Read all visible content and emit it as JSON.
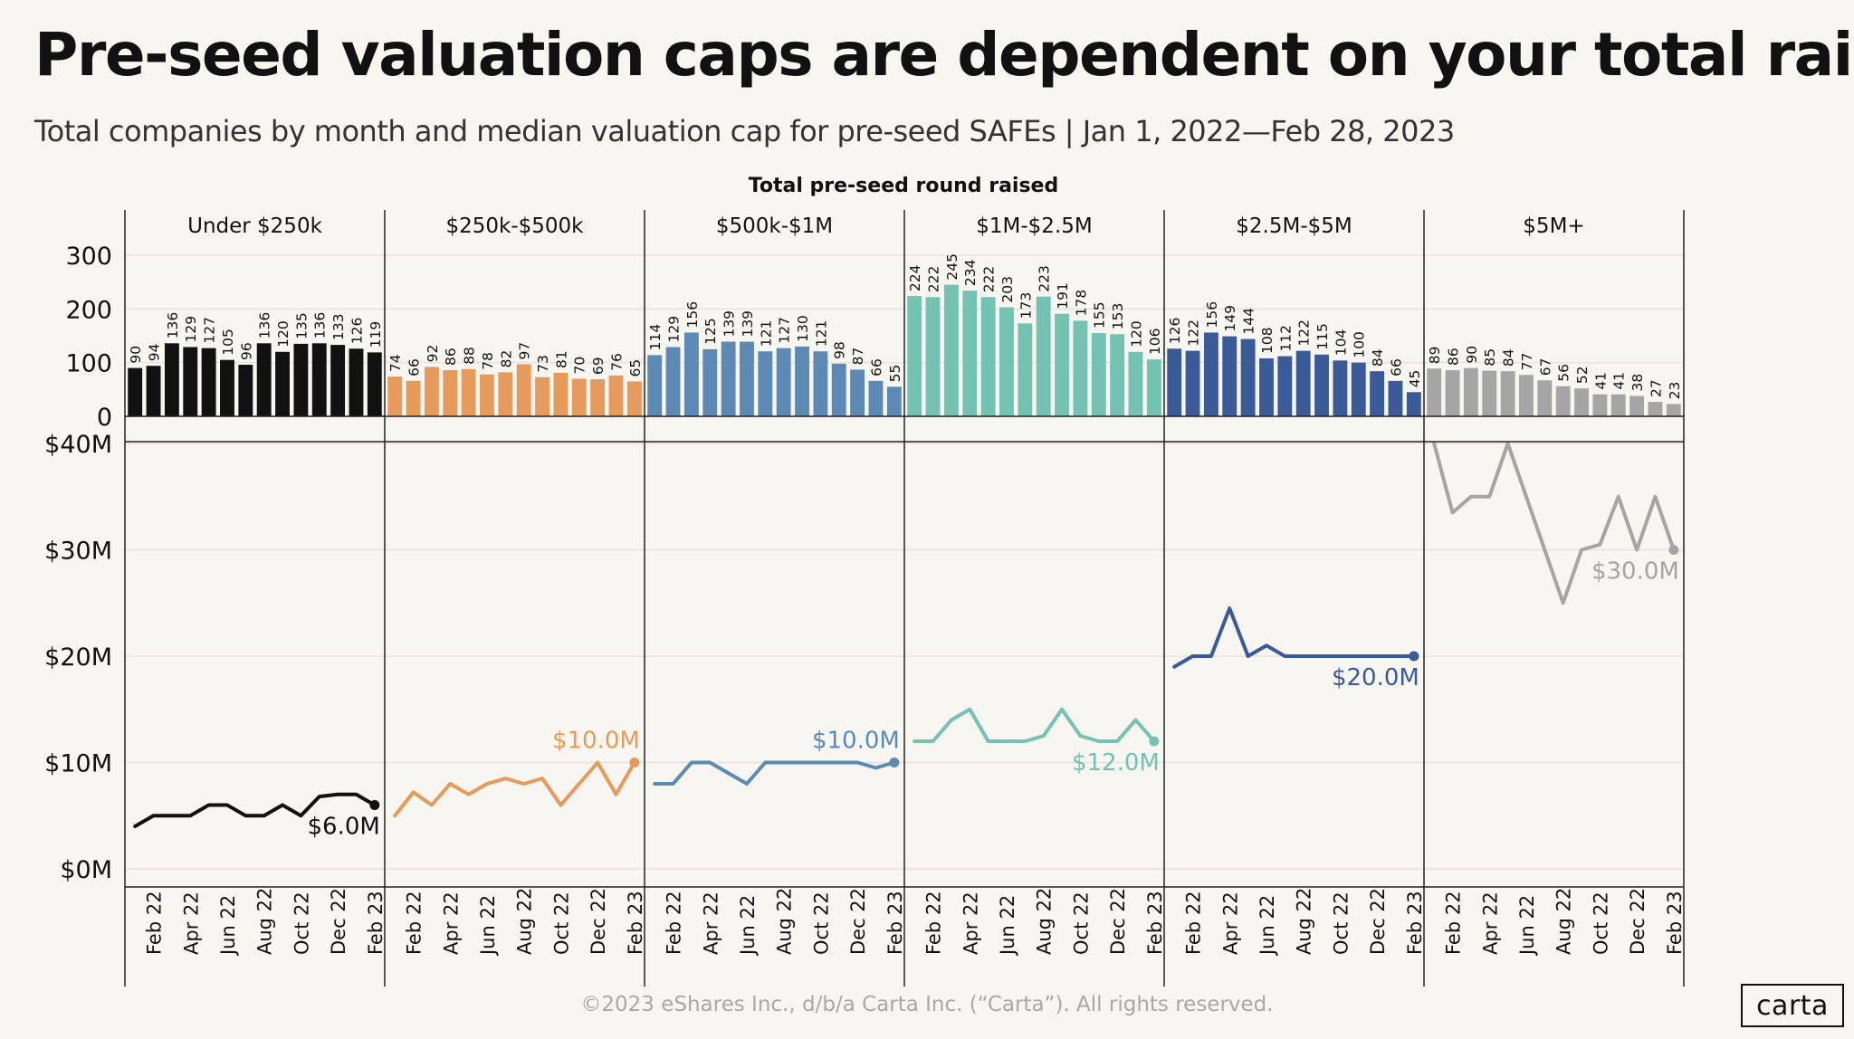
{
  "title": "Pre-seed valuation caps are dependent on your total raise",
  "subtitle": "Total companies by month and median valuation cap for pre-seed SAFEs | Jan 1, 2022—Feb 28, 2023",
  "footer": "©2023 eShares Inc., d/b/a Carta Inc. (“Carta”). All rights reserved.",
  "logo": "carta",
  "chart_data": {
    "type": "bar+line facets",
    "facet_label": "Total pre-seed round raised",
    "months": [
      "Jan 22",
      "Feb 22",
      "Mar 22",
      "Apr 22",
      "May 22",
      "Jun 22",
      "Jul 22",
      "Aug 22",
      "Sep 22",
      "Oct 22",
      "Nov 22",
      "Dec 22",
      "Jan 23",
      "Feb 23"
    ],
    "x_tick_labels": [
      "Feb 22",
      "Apr 22",
      "Jun 22",
      "Aug 22",
      "Oct 22",
      "Dec 22",
      "Feb 23"
    ],
    "bar_axis": {
      "ticks": [
        "0",
        "100",
        "200",
        "300"
      ],
      "range": [
        0,
        300
      ]
    },
    "line_axis": {
      "ticks": [
        "$0M",
        "$10M",
        "$20M",
        "$30M",
        "$40M"
      ],
      "range": [
        0,
        40
      ]
    },
    "panels": [
      {
        "name": "Under $250k",
        "color": "#111111",
        "label_color": "#111111",
        "counts": [
          90,
          94,
          136,
          129,
          127,
          105,
          96,
          136,
          120,
          135,
          136,
          133,
          126,
          119
        ],
        "valuation_musd": [
          4,
          5,
          5,
          5,
          6,
          6,
          5,
          5,
          6,
          5,
          6.8,
          7,
          7,
          6
        ],
        "end_label": "$6.0M"
      },
      {
        "name": "$250k-$500k",
        "color": "#e69a5c",
        "label_color": "#e69a5c",
        "counts": [
          74,
          66,
          92,
          86,
          88,
          78,
          82,
          97,
          73,
          81,
          70,
          69,
          76,
          65
        ],
        "valuation_musd": [
          5,
          7.2,
          6,
          8,
          7,
          8,
          8.5,
          8,
          8.5,
          6,
          8,
          10,
          7,
          10
        ],
        "end_label": "$10.0M"
      },
      {
        "name": "$500k-$1M",
        "color": "#5d89b5",
        "label_color": "#5d89b5",
        "counts": [
          114,
          129,
          156,
          125,
          139,
          139,
          121,
          127,
          130,
          121,
          98,
          87,
          66,
          55
        ],
        "valuation_musd": [
          8,
          8,
          10,
          10,
          9,
          8,
          10,
          10,
          10,
          10,
          10,
          10,
          9.5,
          10
        ],
        "end_label": "$10.0M"
      },
      {
        "name": "$1M-$2.5M",
        "color": "#74c2b2",
        "label_color": "#74c2b2",
        "counts": [
          224,
          222,
          245,
          234,
          222,
          203,
          173,
          223,
          191,
          178,
          155,
          153,
          120,
          106
        ],
        "valuation_musd": [
          12,
          12,
          14,
          15,
          12,
          12,
          12,
          12.5,
          15,
          12.5,
          12,
          12,
          14,
          12
        ],
        "end_label": "$12.0M"
      },
      {
        "name": "$2.5M-$5M",
        "color": "#3a5a98",
        "label_color": "#3a5a98",
        "counts": [
          126,
          122,
          156,
          149,
          144,
          108,
          112,
          122,
          115,
          104,
          100,
          84,
          66,
          45
        ],
        "valuation_musd": [
          19,
          20,
          20,
          24.5,
          20,
          21,
          20,
          20,
          20,
          20,
          20,
          20,
          20,
          20
        ],
        "end_label": "$20.0M"
      },
      {
        "name": "$5M+",
        "color": "#a5a5a5",
        "label_color": "#a5a5a5",
        "counts": [
          89,
          86,
          90,
          85,
          84,
          77,
          67,
          56,
          52,
          41,
          41,
          38,
          27,
          23
        ],
        "valuation_musd": [
          40,
          33.5,
          35,
          35,
          40,
          35,
          30,
          25,
          30,
          30.5,
          35,
          30,
          35,
          30
        ],
        "end_label": "$30.0M"
      }
    ]
  }
}
